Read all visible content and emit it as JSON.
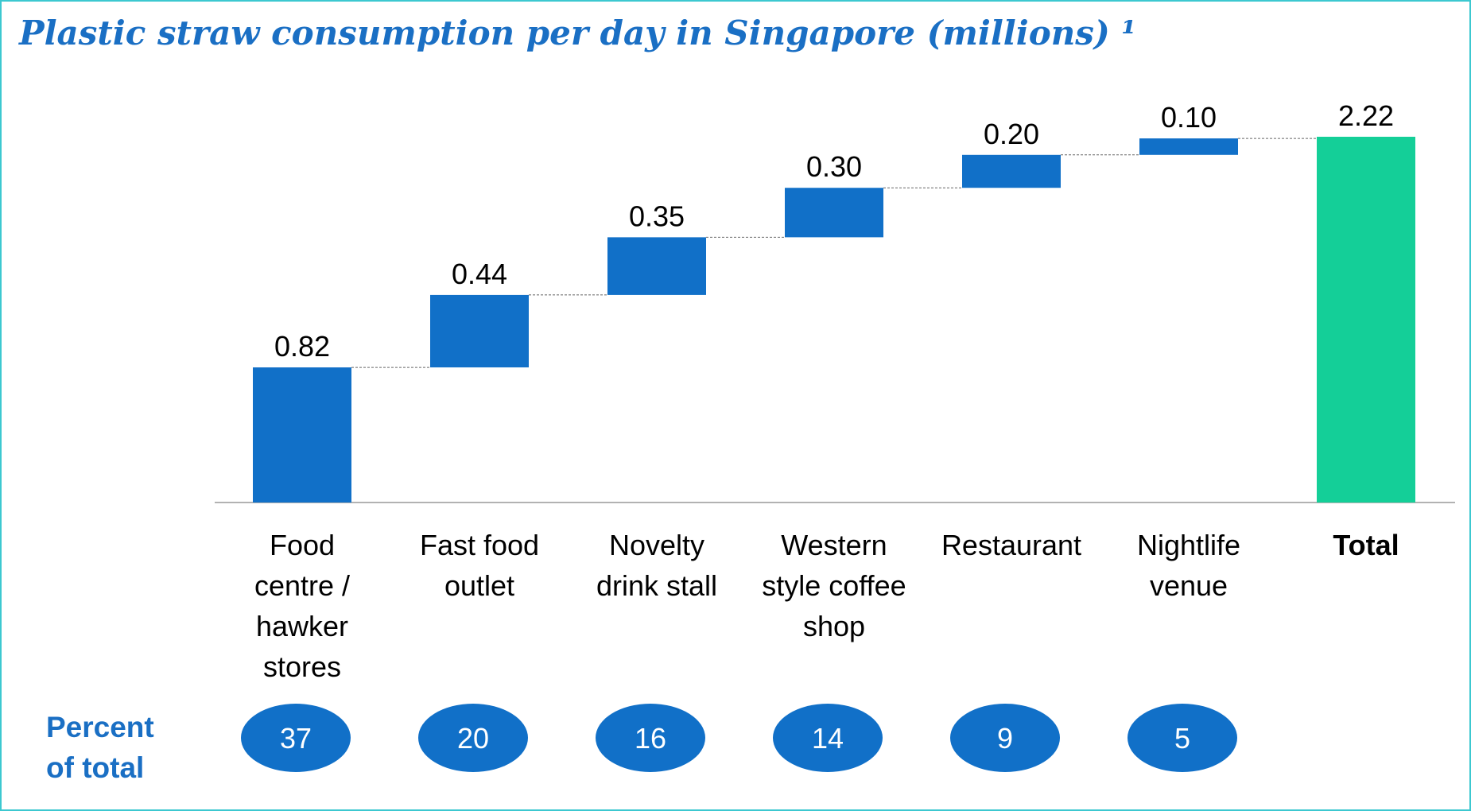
{
  "chart_data": {
    "type": "waterfall",
    "title": "Plastic straw consumption per day in Singapore (millions) ¹",
    "categories": [
      "Food\ncentre /\nhawker\nstores",
      "Fast food\noutlet",
      "Novelty\ndrink stall",
      "Western\nstyle coffee\nshop",
      "Restaurant",
      "Nightlife\nvenue"
    ],
    "values": [
      0.82,
      0.44,
      0.35,
      0.3,
      0.2,
      0.1
    ],
    "value_labels": [
      "0.82",
      "0.44",
      "0.35",
      "0.30",
      "0.20",
      "0.10"
    ],
    "color": "#1170c8",
    "total": {
      "label": "Total",
      "value": 2.22,
      "value_label": "2.22",
      "color": "#14cf98"
    },
    "percent_title": "Percent\nof total",
    "percents": [
      37,
      20,
      16,
      14,
      9,
      5
    ],
    "percent_color": "#1170c8"
  }
}
